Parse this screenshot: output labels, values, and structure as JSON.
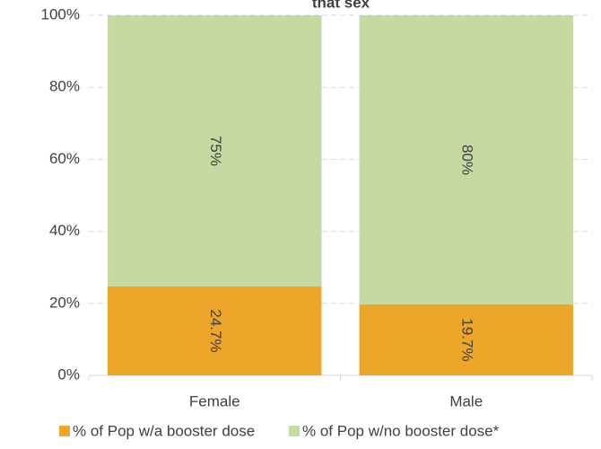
{
  "chart_data": {
    "type": "stacked_bar",
    "title": "that sex",
    "categories": [
      "Female",
      "Male"
    ],
    "series": [
      {
        "name": "% of Pop w/a booster dose",
        "color": "#eda52a",
        "values": [
          24.7,
          19.7
        ],
        "value_labels": [
          "24.7%",
          "19.7%"
        ]
      },
      {
        "name": "% of Pop w/no booster dose*",
        "color": "#c5d9a0",
        "values": [
          75.3,
          80.3
        ],
        "value_labels": [
          "75%",
          "80%"
        ]
      }
    ],
    "ylim": [
      0,
      100
    ],
    "yticks": [
      {
        "value": 0,
        "label": "0%"
      },
      {
        "value": 20,
        "label": "20%"
      },
      {
        "value": 40,
        "label": "40%"
      },
      {
        "value": 60,
        "label": "60%"
      },
      {
        "value": 80,
        "label": "80%"
      },
      {
        "value": 100,
        "label": "100%"
      }
    ],
    "grid": true,
    "legend": "bottom"
  }
}
